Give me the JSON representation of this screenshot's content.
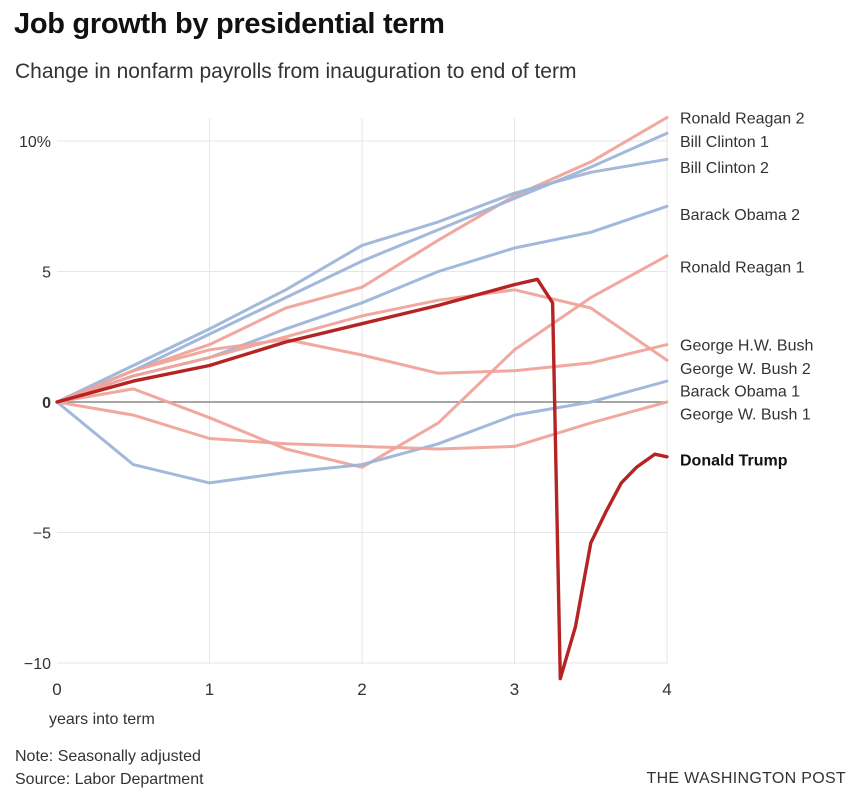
{
  "header": {
    "title": "Job growth by presidential term",
    "subtitle": "Change in nonfarm payrolls from inauguration to end of term"
  },
  "footer": {
    "note": "Note: Seasonally adjusted",
    "source": "Source: Labor Department",
    "credit": "THE WASHINGTON POST"
  },
  "colors": {
    "democrat": "#9db5d9",
    "republican": "#f0a39a",
    "highlight": "#b62323",
    "zero_line": "#888888",
    "grid": "#e6e6e6"
  },
  "chart_data": {
    "type": "line",
    "xlabel": "years into term",
    "ylabel": "",
    "xlim": [
      0,
      4
    ],
    "ylim": [
      -10,
      10.5
    ],
    "x_ticks": [
      {
        "value": 0,
        "label": "0"
      },
      {
        "value": 1,
        "label": "1"
      },
      {
        "value": 2,
        "label": "2"
      },
      {
        "value": 3,
        "label": "3"
      },
      {
        "value": 4,
        "label": "4"
      }
    ],
    "y_ticks": [
      {
        "value": 10,
        "label": "10%",
        "bold": false
      },
      {
        "value": 5,
        "label": "5",
        "bold": false
      },
      {
        "value": 0,
        "label": "0",
        "bold": true
      },
      {
        "value": -5,
        "label": "−5",
        "bold": false
      },
      {
        "value": -10,
        "label": "−10",
        "bold": false
      }
    ],
    "grid": true,
    "series": [
      {
        "name": "Ronald Reagan 2",
        "party": "republican",
        "highlight": false,
        "label_y": 10.9,
        "points": [
          [
            0,
            0
          ],
          [
            0.5,
            1.2
          ],
          [
            1,
            2.2
          ],
          [
            1.5,
            3.6
          ],
          [
            2,
            4.4
          ],
          [
            2.5,
            6.2
          ],
          [
            3,
            7.9
          ],
          [
            3.5,
            9.2
          ],
          [
            4,
            10.9
          ]
        ]
      },
      {
        "name": "Bill Clinton 1",
        "party": "democrat",
        "highlight": false,
        "label_y": 10.0,
        "points": [
          [
            0,
            0
          ],
          [
            0.5,
            1.2
          ],
          [
            1,
            2.6
          ],
          [
            1.5,
            4.0
          ],
          [
            2,
            5.4
          ],
          [
            2.5,
            6.6
          ],
          [
            3,
            7.8
          ],
          [
            3.5,
            9.0
          ],
          [
            4,
            10.3
          ]
        ]
      },
      {
        "name": "Bill Clinton 2",
        "party": "democrat",
        "highlight": false,
        "label_y": 9.0,
        "points": [
          [
            0,
            0
          ],
          [
            0.5,
            1.4
          ],
          [
            1,
            2.8
          ],
          [
            1.5,
            4.3
          ],
          [
            2,
            6.0
          ],
          [
            2.5,
            6.9
          ],
          [
            3,
            8.0
          ],
          [
            3.5,
            8.8
          ],
          [
            4,
            9.3
          ]
        ]
      },
      {
        "name": "Barack Obama 2",
        "party": "democrat",
        "highlight": false,
        "label_y": 7.2,
        "points": [
          [
            0,
            0
          ],
          [
            0.5,
            1.0
          ],
          [
            1,
            1.7
          ],
          [
            1.5,
            2.8
          ],
          [
            2,
            3.8
          ],
          [
            2.5,
            5.0
          ],
          [
            3,
            5.9
          ],
          [
            3.5,
            6.5
          ],
          [
            4,
            7.5
          ]
        ]
      },
      {
        "name": "Ronald Reagan 1",
        "party": "republican",
        "highlight": false,
        "label_y": 5.2,
        "points": [
          [
            0,
            0
          ],
          [
            0.5,
            0.5
          ],
          [
            1,
            -0.6
          ],
          [
            1.5,
            -1.8
          ],
          [
            2,
            -2.5
          ],
          [
            2.5,
            -0.8
          ],
          [
            3,
            2.0
          ],
          [
            3.5,
            4.0
          ],
          [
            4,
            5.6
          ]
        ]
      },
      {
        "name": "George H.W. Bush",
        "party": "republican",
        "highlight": false,
        "label_y": 2.2,
        "points": [
          [
            0,
            0
          ],
          [
            0.5,
            1.0
          ],
          [
            1,
            1.7
          ],
          [
            1.5,
            2.5
          ],
          [
            2,
            3.3
          ],
          [
            2.5,
            3.9
          ],
          [
            3,
            4.3
          ],
          [
            3.5,
            3.6
          ],
          [
            4,
            1.6
          ]
        ]
      },
      {
        "name": "George W. Bush 2",
        "party": "republican",
        "highlight": false,
        "label_y": 1.3,
        "points": [
          [
            0,
            0
          ],
          [
            0.5,
            1.2
          ],
          [
            1,
            2.0
          ],
          [
            1.5,
            2.4
          ],
          [
            2,
            1.8
          ],
          [
            2.5,
            1.1
          ],
          [
            3,
            1.2
          ],
          [
            3.5,
            1.5
          ],
          [
            4,
            2.2
          ]
        ]
      },
      {
        "name": "Barack Obama 1",
        "party": "democrat",
        "highlight": false,
        "label_y": 0.45,
        "points": [
          [
            0,
            0
          ],
          [
            0.5,
            -2.4
          ],
          [
            1,
            -3.1
          ],
          [
            1.5,
            -2.7
          ],
          [
            2,
            -2.4
          ],
          [
            2.5,
            -1.6
          ],
          [
            3,
            -0.5
          ],
          [
            3.5,
            0.0
          ],
          [
            4,
            0.8
          ]
        ]
      },
      {
        "name": "George W. Bush 1",
        "party": "republican",
        "highlight": false,
        "label_y": -0.45,
        "points": [
          [
            0,
            0
          ],
          [
            0.5,
            -0.5
          ],
          [
            1,
            -1.4
          ],
          [
            1.5,
            -1.6
          ],
          [
            2,
            -1.7
          ],
          [
            2.5,
            -1.8
          ],
          [
            3,
            -1.7
          ],
          [
            3.5,
            -0.8
          ],
          [
            4,
            0.0
          ]
        ]
      },
      {
        "name": "Donald Trump",
        "party": "republican",
        "highlight": true,
        "label_y": -2.2,
        "points": [
          [
            0,
            0
          ],
          [
            0.5,
            0.8
          ],
          [
            1,
            1.4
          ],
          [
            1.5,
            2.3
          ],
          [
            2,
            3.0
          ],
          [
            2.5,
            3.7
          ],
          [
            3,
            4.5
          ],
          [
            3.15,
            4.7
          ],
          [
            3.25,
            3.8
          ],
          [
            3.3,
            -10.6
          ],
          [
            3.4,
            -8.6
          ],
          [
            3.5,
            -5.4
          ],
          [
            3.6,
            -4.2
          ],
          [
            3.7,
            -3.1
          ],
          [
            3.8,
            -2.5
          ],
          [
            3.92,
            -2.0
          ],
          [
            4,
            -2.1
          ]
        ]
      }
    ]
  }
}
